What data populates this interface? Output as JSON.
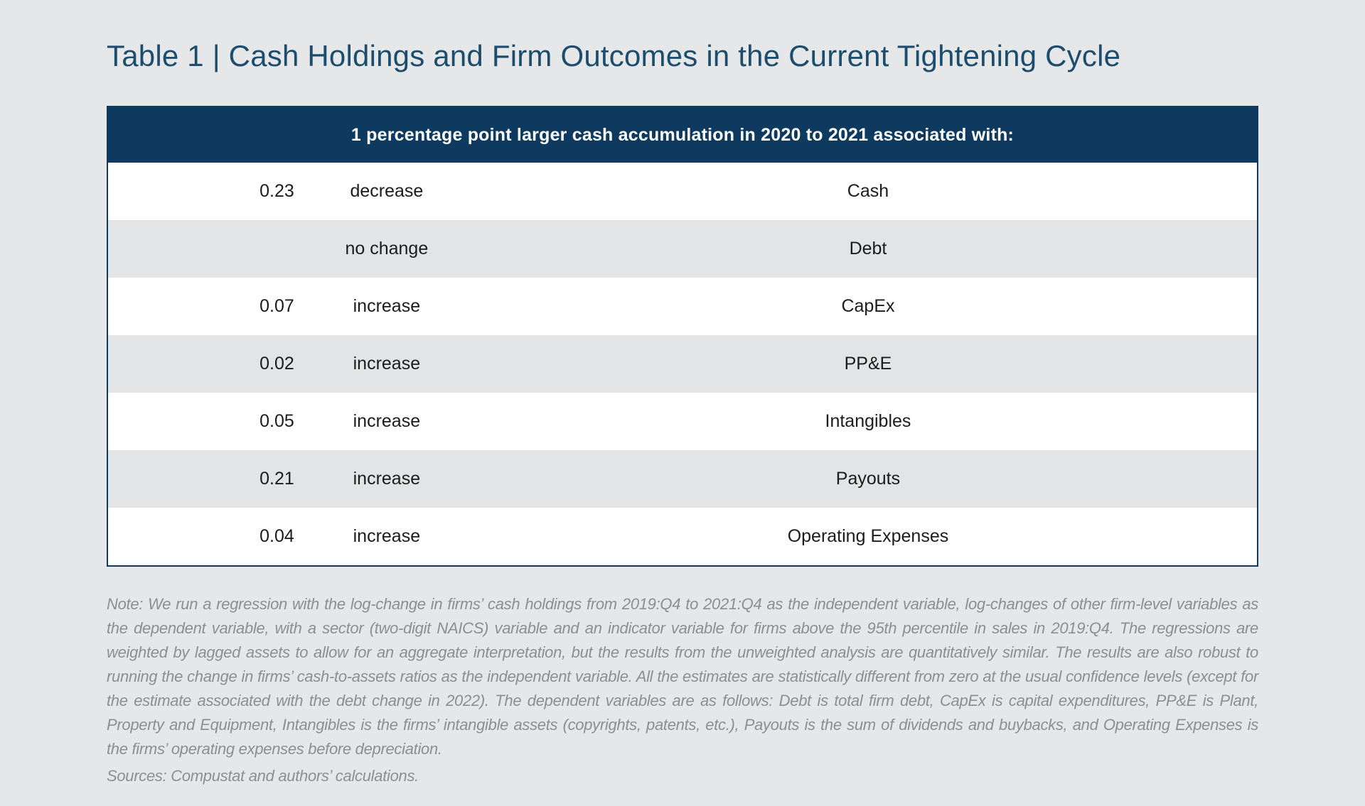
{
  "title": "Table 1 | Cash Holdings and Firm Outcomes in the Current Tightening Cycle",
  "table": {
    "header": "1 percentage point larger cash accumulation in 2020 to 2021 associated with:",
    "rows": [
      {
        "value": "0.23",
        "direction": "decrease",
        "outcome": "Cash"
      },
      {
        "value": "",
        "direction": "no change",
        "outcome": "Debt"
      },
      {
        "value": "0.07",
        "direction": "increase",
        "outcome": "CapEx"
      },
      {
        "value": "0.02",
        "direction": "increase",
        "outcome": "PP&E"
      },
      {
        "value": "0.05",
        "direction": "increase",
        "outcome": "Intangibles"
      },
      {
        "value": "0.21",
        "direction": "increase",
        "outcome": "Payouts"
      },
      {
        "value": "0.04",
        "direction": "increase",
        "outcome": "Operating Expenses"
      }
    ]
  },
  "note": "Note: We run a regression with the log-change in firms’ cash holdings from 2019:Q4 to 2021:Q4 as the independent variable, log-changes of other firm-level variables as the dependent variable, with a sector (two-digit NAICS) variable and an indicator variable for firms above the 95th percentile in sales in 2019:Q4. The regressions are weighted by lagged assets to allow for an aggregate interpretation, but the results from the unweighted analysis are quantitatively similar. The results are also robust to running the change in firms’ cash-to-assets ratios as the independent variable. All the estimates are statistically different from zero at the usual confidence levels (except for the estimate associated with the debt change in 2022). The dependent variables are as follows: Debt is total firm debt, CapEx is capital expenditures, PP&E is Plant, Property and Equipment, Intangibles is the firms’ intangible assets (copyrights, patents, etc.), Payouts is the sum of dividends and buybacks, and Operating Expenses is the firms’ operating expenses before depreciation.",
  "sources": "Sources: Compustat and authors’ calculations.",
  "colors": {
    "page_background": "#e6e7e9",
    "header_navy": "#0d3a5e",
    "row_stripe": "#e2e4e5",
    "title_blue": "#1d4d6d",
    "note_gray": "#8c8f92"
  },
  "chart_data": {
    "type": "table",
    "title": "Table 1 | Cash Holdings and Firm Outcomes in the Current Tightening Cycle",
    "header": "1 percentage point larger cash accumulation in 2020 to 2021 associated with:",
    "columns": [
      "estimate",
      "direction",
      "outcome"
    ],
    "rows": [
      [
        "0.23",
        "decrease",
        "Cash"
      ],
      [
        "",
        "no change",
        "Debt"
      ],
      [
        "0.07",
        "increase",
        "CapEx"
      ],
      [
        "0.02",
        "increase",
        "PP&E"
      ],
      [
        "0.05",
        "increase",
        "Intangibles"
      ],
      [
        "0.21",
        "increase",
        "Payouts"
      ],
      [
        "0.04",
        "increase",
        "Operating Expenses"
      ]
    ]
  }
}
